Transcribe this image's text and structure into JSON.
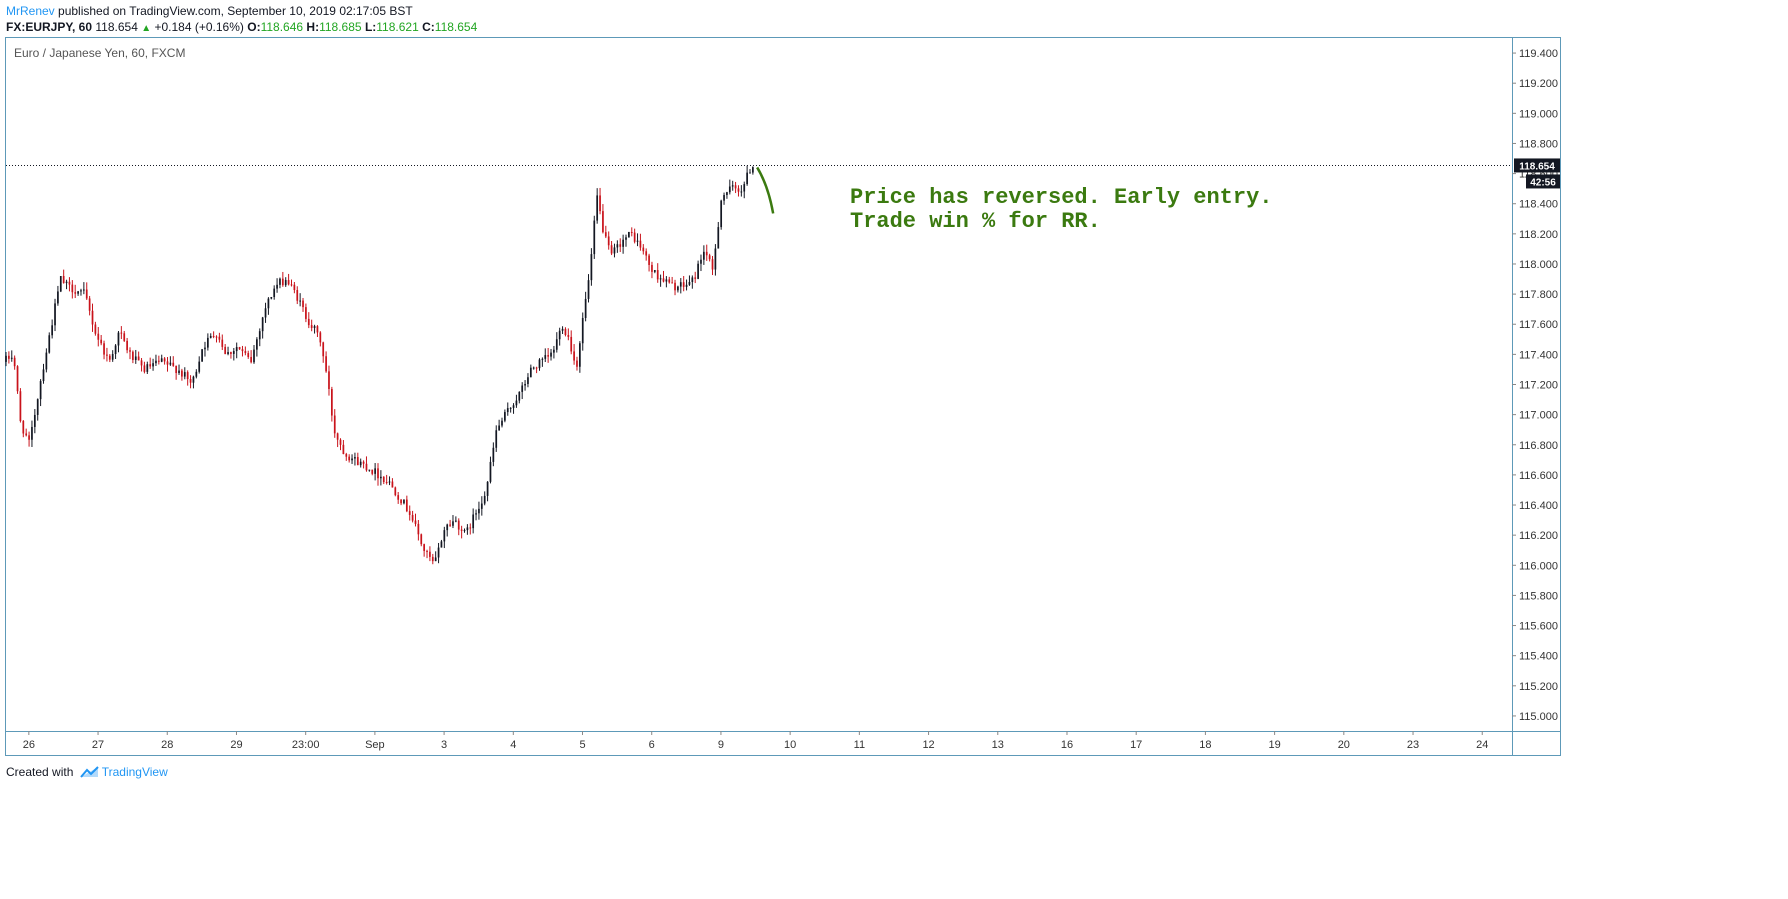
{
  "header": {
    "author": "MrRenev",
    "published_text": " published on TradingView.com, September 10, 2019 02:17:05 BST",
    "symbol": "FX:EURJPY, 60",
    "last": "118.654",
    "change": "+0.184 (+0.16%)",
    "o_label": "O:",
    "o_value": "118.646",
    "h_label": "H:",
    "h_value": "118.685",
    "l_label": "L:",
    "l_value": "118.621",
    "c_label": "C:",
    "c_value": "118.654"
  },
  "footer": {
    "created_with": "Created with",
    "brand": "TradingView"
  },
  "colors": {
    "up": "#131722",
    "down": "#c9131b",
    "annotation": "#3b7a10",
    "frame": "#5d99b8",
    "up_text": "#22a522",
    "brand": "#2196f3"
  },
  "chart_data": {
    "type": "candlestick",
    "title": "Euro / Japanese Yen, 60, FXCM",
    "ylim": [
      114.9,
      119.5
    ],
    "y_ticks": [
      "119.400",
      "119.200",
      "119.000",
      "118.800",
      "118.600",
      "118.400",
      "118.200",
      "118.000",
      "117.800",
      "117.600",
      "117.400",
      "117.200",
      "117.000",
      "116.800",
      "116.600",
      "116.400",
      "116.200",
      "116.000",
      "115.800",
      "115.600",
      "115.400",
      "115.200",
      "115.000"
    ],
    "x_ticks": [
      {
        "label": "26",
        "t": 0.5
      },
      {
        "label": "27",
        "t": 1.5
      },
      {
        "label": "28",
        "t": 2.5
      },
      {
        "label": "29",
        "t": 3.5
      },
      {
        "label": "23:00",
        "t": 4.5
      },
      {
        "label": "Sep",
        "t": 5.5
      },
      {
        "label": "3",
        "t": 6.5
      },
      {
        "label": "4",
        "t": 7.5
      },
      {
        "label": "5",
        "t": 8.5
      },
      {
        "label": "6",
        "t": 9.5
      },
      {
        "label": "9",
        "t": 10.5
      },
      {
        "label": "10",
        "t": 11.5
      },
      {
        "label": "11",
        "t": 12.5
      },
      {
        "label": "12",
        "t": 13.5
      },
      {
        "label": "13",
        "t": 14.5
      },
      {
        "label": "16",
        "t": 15.5
      },
      {
        "label": "17",
        "t": 16.5
      },
      {
        "label": "18",
        "t": 17.5
      },
      {
        "label": "19",
        "t": 18.5
      },
      {
        "label": "20",
        "t": 19.5
      },
      {
        "label": "23",
        "t": 20.5
      },
      {
        "label": "24",
        "t": 21.5
      }
    ],
    "t_range": [
      0.17,
      21.93
    ],
    "bars_per_day": 24,
    "price_path": [
      [
        0.17,
        117.35
      ],
      [
        0.32,
        117.4
      ],
      [
        0.42,
        116.95
      ],
      [
        0.55,
        116.8
      ],
      [
        0.7,
        117.2
      ],
      [
        0.85,
        117.55
      ],
      [
        1.0,
        117.9
      ],
      [
        1.1,
        117.85
      ],
      [
        1.35,
        117.8
      ],
      [
        1.5,
        117.55
      ],
      [
        1.7,
        117.35
      ],
      [
        1.85,
        117.55
      ],
      [
        2.0,
        117.4
      ],
      [
        2.2,
        117.3
      ],
      [
        2.45,
        117.35
      ],
      [
        2.7,
        117.3
      ],
      [
        2.9,
        117.2
      ],
      [
        3.05,
        117.45
      ],
      [
        3.25,
        117.55
      ],
      [
        3.4,
        117.4
      ],
      [
        3.55,
        117.45
      ],
      [
        3.75,
        117.35
      ],
      [
        3.95,
        117.7
      ],
      [
        4.1,
        117.85
      ],
      [
        4.25,
        117.9
      ],
      [
        4.4,
        117.8
      ],
      [
        4.55,
        117.65
      ],
      [
        4.75,
        117.5
      ],
      [
        4.85,
        117.25
      ],
      [
        4.95,
        116.9
      ],
      [
        5.1,
        116.75
      ],
      [
        5.25,
        116.7
      ],
      [
        5.45,
        116.65
      ],
      [
        5.6,
        116.6
      ],
      [
        5.75,
        116.55
      ],
      [
        5.9,
        116.45
      ],
      [
        6.05,
        116.35
      ],
      [
        6.25,
        116.1
      ],
      [
        6.4,
        116.0
      ],
      [
        6.55,
        116.25
      ],
      [
        6.7,
        116.3
      ],
      [
        6.85,
        116.2
      ],
      [
        7.0,
        116.35
      ],
      [
        7.15,
        116.5
      ],
      [
        7.3,
        116.9
      ],
      [
        7.5,
        117.05
      ],
      [
        7.65,
        117.15
      ],
      [
        7.8,
        117.3
      ],
      [
        7.95,
        117.35
      ],
      [
        8.1,
        117.4
      ],
      [
        8.25,
        117.6
      ],
      [
        8.35,
        117.5
      ],
      [
        8.45,
        117.3
      ],
      [
        8.55,
        117.65
      ],
      [
        8.65,
        117.95
      ],
      [
        8.75,
        118.45
      ],
      [
        8.85,
        118.2
      ],
      [
        8.95,
        118.05
      ],
      [
        9.1,
        118.15
      ],
      [
        9.25,
        118.2
      ],
      [
        9.4,
        118.1
      ],
      [
        9.55,
        117.95
      ],
      [
        9.7,
        117.9
      ],
      [
        9.85,
        117.85
      ],
      [
        10.0,
        117.85
      ],
      [
        10.15,
        117.9
      ],
      [
        10.3,
        118.1
      ],
      [
        10.42,
        117.95
      ],
      [
        10.55,
        118.45
      ],
      [
        10.7,
        118.5
      ],
      [
        10.85,
        118.5
      ],
      [
        10.98,
        118.65
      ]
    ],
    "last_price": "118.654",
    "countdown": "42:56",
    "annotation": [
      "Price has reversed. Early entry.",
      "Trade win % for RR."
    ]
  }
}
